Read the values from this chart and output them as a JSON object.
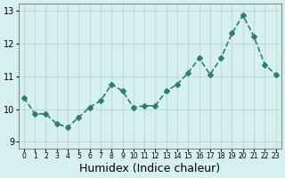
{
  "x": [
    0,
    1,
    2,
    3,
    4,
    5,
    6,
    7,
    8,
    9,
    10,
    11,
    12,
    13,
    14,
    15,
    16,
    17,
    18,
    19,
    20,
    21,
    22,
    23
  ],
  "y": [
    10.35,
    9.85,
    9.85,
    9.55,
    9.45,
    9.75,
    10.05,
    10.25,
    10.75,
    10.55,
    10.05,
    10.1,
    10.1,
    10.55,
    10.75,
    11.1,
    11.55,
    11.05,
    11.55,
    12.3,
    12.85,
    12.2,
    11.35,
    11.05
  ],
  "line_color": "#2e7d6e",
  "marker": "D",
  "markersize": 3,
  "linewidth": 1.2,
  "bg_color": "#d6f0f0",
  "grid_color": "#c0dada",
  "xlabel": "Humidex (Indice chaleur)",
  "xlabel_fontsize": 9,
  "xtick_labels": [
    "0",
    "1",
    "2",
    "3",
    "4",
    "5",
    "6",
    "7",
    "8",
    "9",
    "10",
    "11",
    "12",
    "13",
    "14",
    "15",
    "16",
    "17",
    "18",
    "19",
    "20",
    "21",
    "22",
    "23"
  ],
  "ylim": [
    8.8,
    13.2
  ],
  "yticks": [
    9,
    10,
    11,
    12,
    13
  ],
  "xlim": [
    -0.5,
    23.5
  ]
}
